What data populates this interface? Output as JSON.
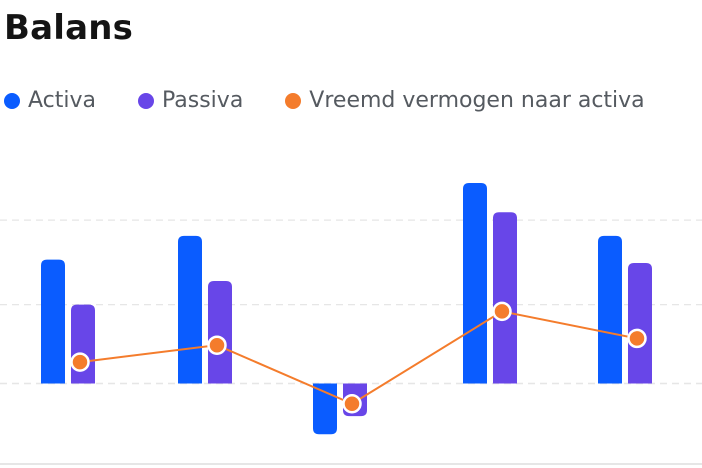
{
  "title": "Balans",
  "colors": {
    "activa": "#0a5cff",
    "passiva": "#6846e8",
    "line": "#f47c2c",
    "grid": "#e6e6e6"
  },
  "legend": [
    {
      "label": "Activa",
      "color": "#0a5cff"
    },
    {
      "label": "Passiva",
      "color": "#6846e8"
    },
    {
      "label": "Vreemd vermogen naar activa",
      "color": "#f47c2c"
    }
  ],
  "chart_data": {
    "type": "bar",
    "categories": [
      "",
      "",
      "",
      "",
      ""
    ],
    "series": [
      {
        "name": "Activa",
        "kind": "bar",
        "color": "#0a5cff",
        "values": [
          110,
          131,
          -45,
          178,
          131
        ]
      },
      {
        "name": "Passiva",
        "kind": "bar",
        "color": "#6846e8",
        "values": [
          70,
          91,
          -29,
          152,
          107
        ]
      },
      {
        "name": "Vreemd vermogen naar activa",
        "kind": "line",
        "color": "#f47c2c",
        "values": [
          19,
          34,
          -18,
          64,
          40
        ]
      }
    ],
    "ylim": [
      -75,
      225
    ],
    "gridlines": [
      0,
      70,
      145
    ],
    "grid": true,
    "legend_position": "top-left",
    "xlabel": "",
    "ylabel": ""
  }
}
